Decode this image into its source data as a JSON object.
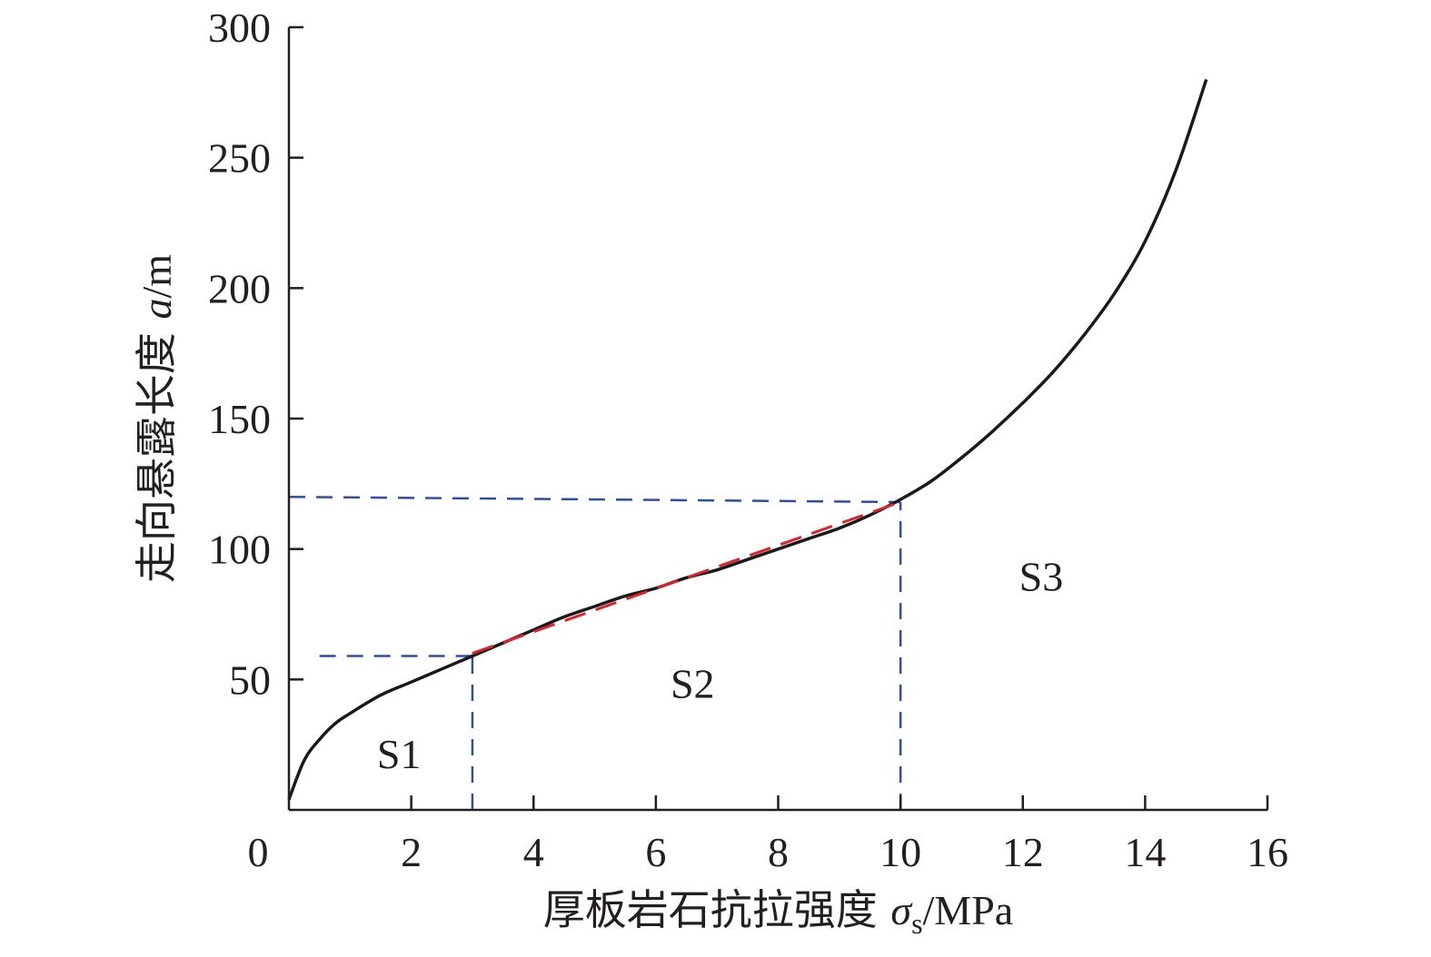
{
  "chart_data": {
    "type": "line",
    "xlabel": {
      "text": "厚板岩石抗拉强度 ",
      "symbol": "σ",
      "subscript": "s",
      "unit": "/MPa"
    },
    "ylabel": {
      "text": "走向悬露长度 ",
      "symbol": "a",
      "unit": "/m"
    },
    "xlim": [
      0,
      16
    ],
    "ylim": [
      0,
      300
    ],
    "x_ticks": [
      0,
      2,
      4,
      6,
      8,
      10,
      12,
      14,
      16
    ],
    "y_ticks": [
      50,
      100,
      150,
      200,
      250,
      300
    ],
    "origin_label": "0",
    "grid": false,
    "legend": "none",
    "series": [
      {
        "color": "#1a1a1a",
        "style": "solid",
        "x": [
          0,
          0.25,
          0.5,
          0.75,
          1,
          1.5,
          2,
          2.5,
          3,
          3.5,
          4,
          4.5,
          5,
          5.5,
          6,
          6.5,
          7,
          7.5,
          8,
          8.5,
          9,
          9.5,
          10,
          10.5,
          11,
          11.5,
          12,
          12.5,
          13,
          13.5,
          14,
          14.5,
          15
        ],
        "y": [
          4,
          19,
          27,
          33,
          37,
          44,
          49,
          54,
          59,
          64,
          69,
          74,
          78,
          82,
          85,
          89,
          92,
          96,
          100,
          104,
          108,
          113,
          119,
          126,
          135,
          145,
          156,
          168,
          182,
          198,
          218,
          245,
          280
        ]
      },
      {
        "color": "#d9252b",
        "style": "dashed",
        "x": [
          3,
          10
        ],
        "y": [
          60,
          118
        ]
      }
    ],
    "reference_lines": {
      "color": "#2e4fa0",
      "style": "dashed",
      "segments": [
        {
          "x": [
            0.5,
            3
          ],
          "y": [
            59,
            59
          ]
        },
        {
          "x": [
            3,
            3
          ],
          "y": [
            0,
            59
          ]
        },
        {
          "x": [
            0,
            10
          ],
          "y": [
            120,
            118
          ]
        },
        {
          "x": [
            10,
            10
          ],
          "y": [
            0,
            118
          ]
        }
      ]
    },
    "regions": [
      {
        "label": "S1",
        "x": 1.8,
        "y": 16
      },
      {
        "label": "S2",
        "x": 6.6,
        "y": 43
      },
      {
        "label": "S3",
        "x": 12.3,
        "y": 84
      }
    ]
  }
}
